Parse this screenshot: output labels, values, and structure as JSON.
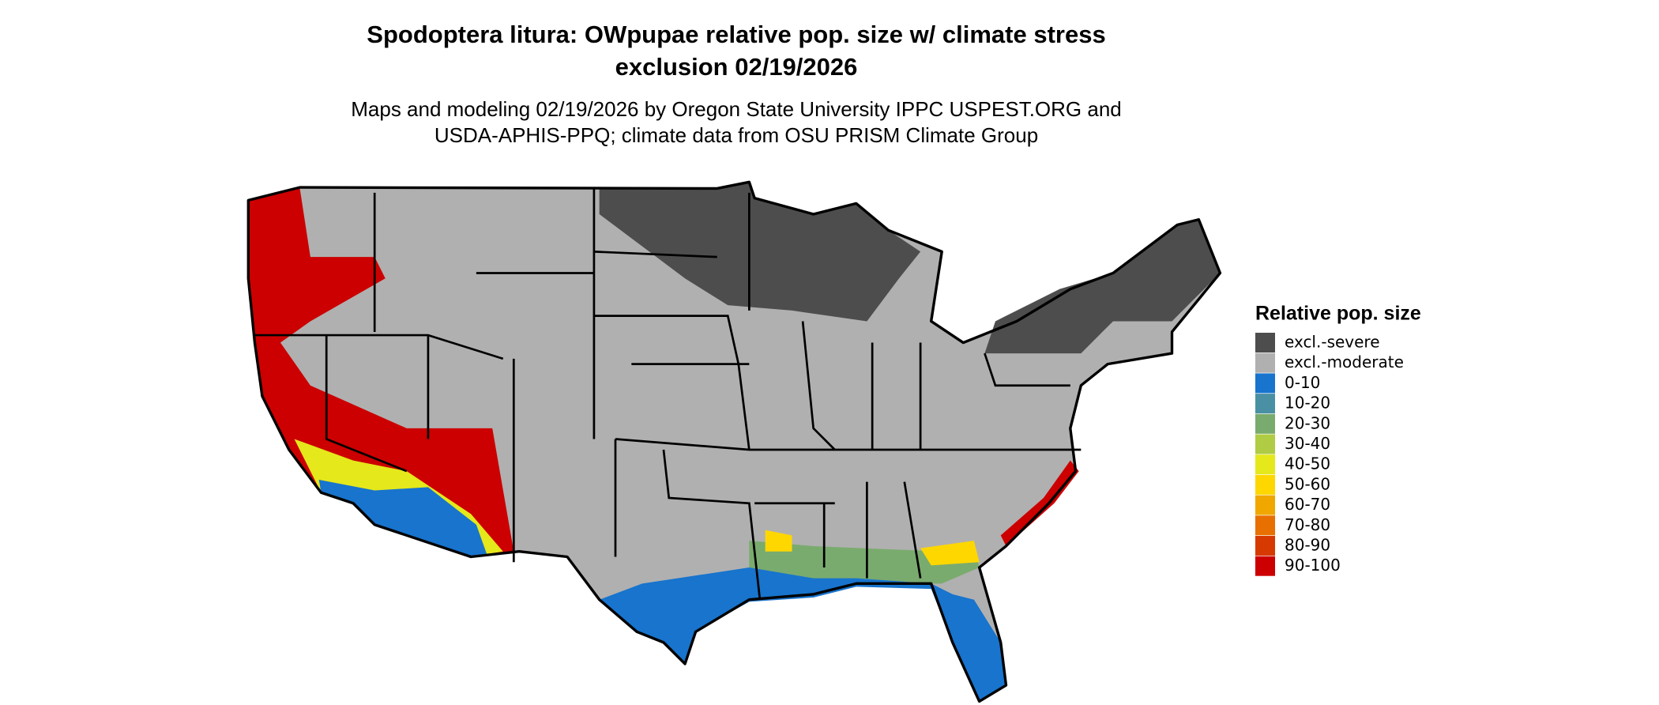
{
  "header": {
    "title_lines": [
      "Spodoptera litura: OWpupae relative pop. size w/ climate stress",
      "exclusion 02/19/2026"
    ],
    "subtitle_lines": [
      "Maps and modeling 02/19/2026 by Oregon State University IPPC USPEST.ORG and",
      "USDA-APHIS-PPQ; climate data from OSU PRISM Climate Group"
    ]
  },
  "legend": {
    "title": "Relative pop. size",
    "items": [
      {
        "label": "excl.-severe",
        "color": "#4d4d4d"
      },
      {
        "label": "excl.-moderate",
        "color": "#b0b0b0"
      },
      {
        "label": "0-10",
        "color": "#1874cd"
      },
      {
        "label": "10-20",
        "color": "#4a90a4"
      },
      {
        "label": "20-30",
        "color": "#7aab6e"
      },
      {
        "label": "30-40",
        "color": "#b0cc44"
      },
      {
        "label": "40-50",
        "color": "#e5e81a"
      },
      {
        "label": "50-60",
        "color": "#ffd700"
      },
      {
        "label": "60-70",
        "color": "#f0a800"
      },
      {
        "label": "70-80",
        "color": "#e87000"
      },
      {
        "label": "80-90",
        "color": "#d63a00"
      },
      {
        "label": "90-100",
        "color": "#cc0000"
      }
    ]
  }
}
